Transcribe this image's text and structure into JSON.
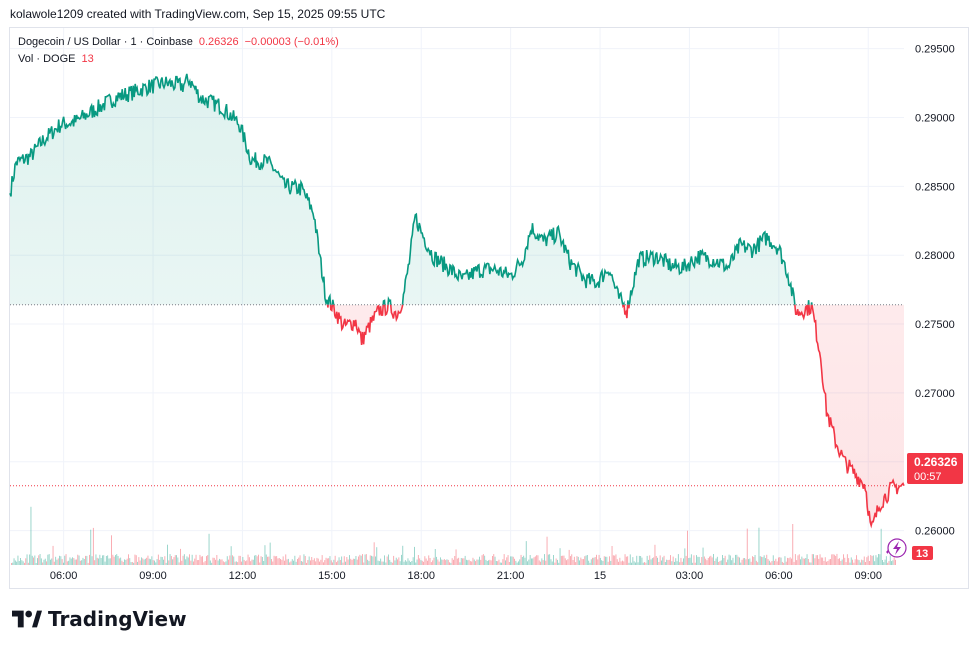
{
  "header": {
    "caption": "kolawole1209 created with TradingView.com, Sep 15, 2025 09:55 UTC"
  },
  "legend": {
    "symbol": "Dogecoin / US Dollar · 1 · Coinbase",
    "price": "0.26326",
    "change": "−0.00003 (−0.01%)",
    "vol_label": "Vol · DOGE",
    "vol_value": "13"
  },
  "price_tag": {
    "price": "0.26326",
    "countdown": "00:57"
  },
  "vol_tag": "13",
  "brand": {
    "name": "TradingView"
  },
  "colors": {
    "up": "#089981",
    "down": "#f23645",
    "grid": "#f0f3fa",
    "text": "#131722"
  },
  "chart_data": {
    "type": "area",
    "title": "Dogecoin / US Dollar · 1 · Coinbase",
    "xlabel": "",
    "ylabel": "",
    "ylim": [
      0.2575,
      0.2965
    ],
    "yticks": [
      "0.26000",
      "0.26500",
      "0.27000",
      "0.27500",
      "0.28000",
      "0.28500",
      "0.29000",
      "0.29500"
    ],
    "ytick_values": [
      0.26,
      0.265,
      0.27,
      0.275,
      0.28,
      0.285,
      0.29,
      0.295
    ],
    "x_range_hours": [
      4.2,
      34.2
    ],
    "xticks": [
      {
        "h": 6,
        "label": "06:00"
      },
      {
        "h": 9,
        "label": "09:00"
      },
      {
        "h": 12,
        "label": "12:00"
      },
      {
        "h": 15,
        "label": "15:00"
      },
      {
        "h": 18,
        "label": "18:00"
      },
      {
        "h": 21,
        "label": "21:00"
      },
      {
        "h": 24,
        "label": "15"
      },
      {
        "h": 27,
        "label": "03:00"
      },
      {
        "h": 30,
        "label": "06:00"
      },
      {
        "h": 33,
        "label": "09:00"
      }
    ],
    "baseline": 0.2764,
    "last_price": 0.26326,
    "price_points": [
      [
        4.2,
        0.2845
      ],
      [
        4.4,
        0.2867
      ],
      [
        4.9,
        0.2872
      ],
      [
        5.3,
        0.2883
      ],
      [
        5.9,
        0.2895
      ],
      [
        6.4,
        0.2897
      ],
      [
        7.0,
        0.2905
      ],
      [
        7.8,
        0.2915
      ],
      [
        8.3,
        0.2918
      ],
      [
        8.8,
        0.2922
      ],
      [
        9.4,
        0.2925
      ],
      [
        10.0,
        0.2923
      ],
      [
        10.2,
        0.2928
      ],
      [
        10.6,
        0.2914
      ],
      [
        11.3,
        0.2908
      ],
      [
        11.9,
        0.2895
      ],
      [
        12.3,
        0.2869
      ],
      [
        12.8,
        0.2868
      ],
      [
        13.1,
        0.2862
      ],
      [
        13.4,
        0.285
      ],
      [
        14.0,
        0.2848
      ],
      [
        14.4,
        0.283
      ],
      [
        14.6,
        0.2798
      ],
      [
        14.8,
        0.277
      ],
      [
        15.1,
        0.276
      ],
      [
        15.4,
        0.2748
      ],
      [
        15.8,
        0.2752
      ],
      [
        16.0,
        0.2738
      ],
      [
        16.3,
        0.275
      ],
      [
        16.6,
        0.276
      ],
      [
        16.9,
        0.2763
      ],
      [
        17.2,
        0.2757
      ],
      [
        17.4,
        0.277
      ],
      [
        17.6,
        0.2795
      ],
      [
        17.8,
        0.2828
      ],
      [
        18.0,
        0.2817
      ],
      [
        18.4,
        0.2799
      ],
      [
        18.9,
        0.2791
      ],
      [
        19.4,
        0.2782
      ],
      [
        19.9,
        0.2789
      ],
      [
        20.4,
        0.279
      ],
      [
        21.0,
        0.2785
      ],
      [
        21.4,
        0.2797
      ],
      [
        21.7,
        0.282
      ],
      [
        22.1,
        0.281
      ],
      [
        22.6,
        0.2816
      ],
      [
        23.0,
        0.2795
      ],
      [
        23.5,
        0.2782
      ],
      [
        23.9,
        0.278
      ],
      [
        24.3,
        0.2791
      ],
      [
        24.6,
        0.277
      ],
      [
        24.9,
        0.276
      ],
      [
        25.3,
        0.2797
      ],
      [
        25.9,
        0.2799
      ],
      [
        26.4,
        0.2792
      ],
      [
        26.8,
        0.2791
      ],
      [
        27.3,
        0.2799
      ],
      [
        27.8,
        0.2797
      ],
      [
        28.3,
        0.2791
      ],
      [
        28.7,
        0.2807
      ],
      [
        29.1,
        0.2804
      ],
      [
        29.6,
        0.2813
      ],
      [
        30.0,
        0.2805
      ],
      [
        30.3,
        0.2787
      ],
      [
        30.6,
        0.2758
      ],
      [
        31.1,
        0.2763
      ],
      [
        31.4,
        0.2727
      ],
      [
        31.6,
        0.2687
      ],
      [
        31.9,
        0.2665
      ],
      [
        32.2,
        0.265
      ],
      [
        32.6,
        0.264
      ],
      [
        32.9,
        0.2633
      ],
      [
        33.1,
        0.26
      ],
      [
        33.4,
        0.262
      ],
      [
        33.8,
        0.2631
      ],
      [
        34.2,
        0.26326
      ]
    ]
  }
}
